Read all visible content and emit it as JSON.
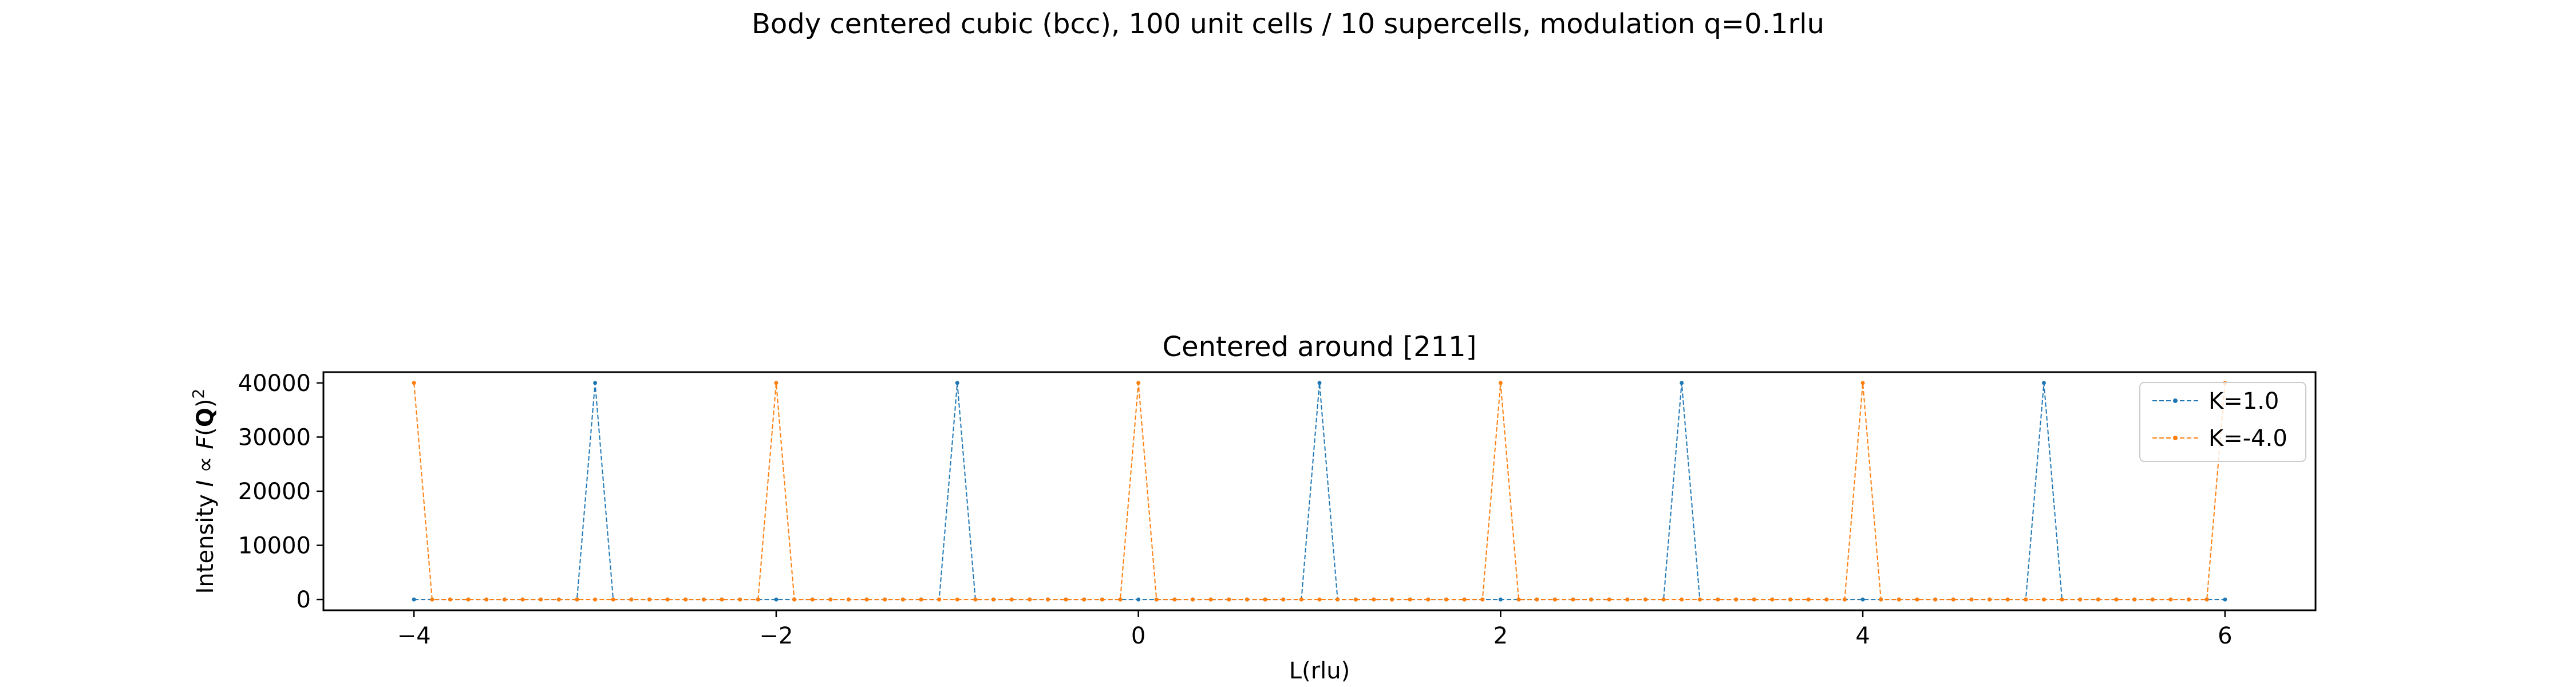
{
  "suptitle": "Body centered cubic (bcc), 100 unit cells / 10 supercells, modulation q=0.1rlu",
  "colors": {
    "series_0": "#1f77b4",
    "series_1": "#ff7f0e"
  },
  "chart_data": {
    "type": "line",
    "title": "Centered around [211]",
    "xlabel": "L(rlu)",
    "ylabel_parts": {
      "prefix": "Intensity ",
      "I": "I",
      "mid": " ∝ ",
      "F": "F",
      "paren_open": "(",
      "Q": "Q",
      "paren_close": ")",
      "sup": "2"
    },
    "xlim": [
      -4.5,
      6.5
    ],
    "ylim": [
      -2000,
      42000
    ],
    "xticks": [
      -4,
      -2,
      0,
      2,
      4,
      6
    ],
    "xtick_labels": [
      "−4",
      "−2",
      "0",
      "2",
      "4",
      "6"
    ],
    "yticks": [
      0,
      10000,
      20000,
      30000,
      40000
    ],
    "ytick_labels": [
      "0",
      "10000",
      "20000",
      "30000",
      "40000"
    ],
    "grid": false,
    "legend_position": "top-right",
    "x_range": {
      "start": -4,
      "end": 6,
      "step": 0.1
    },
    "series": [
      {
        "name": "K=1.0",
        "line_style": "dashed",
        "marker": "dot",
        "peak_value": 40000,
        "peak_at": [
          -3,
          -1,
          1,
          3,
          5
        ],
        "baseline": 0
      },
      {
        "name": "K=-4.0",
        "line_style": "dashed",
        "marker": "dot",
        "peak_value": 40000,
        "peak_at": [
          -4,
          -2,
          0,
          2,
          4,
          6
        ],
        "baseline": 0
      }
    ]
  }
}
